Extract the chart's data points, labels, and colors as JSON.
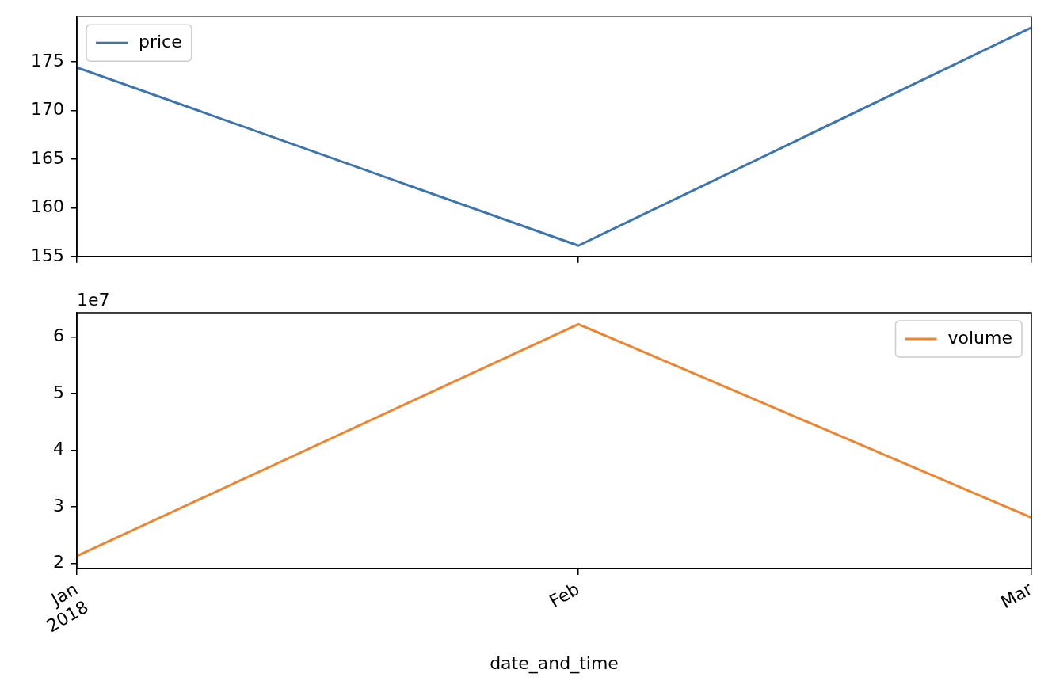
{
  "chart_data": [
    {
      "type": "line",
      "x": [
        "2018-01",
        "2018-02",
        "2018-03"
      ],
      "series": [
        {
          "name": "price",
          "color": "#3a75b0",
          "values": [
            174.4,
            156.1,
            178.5
          ]
        }
      ],
      "xlim": [
        "2018-01",
        "2018-03"
      ],
      "xticks": [
        {
          "value": "2018-01",
          "label": null
        },
        {
          "value": "2018-02",
          "label": null
        },
        {
          "value": "2018-03",
          "label": null
        }
      ],
      "ylim": [
        155.0,
        179.6
      ],
      "yticks": [
        155,
        160,
        165,
        170,
        175
      ],
      "tick_labels": "y",
      "legend": "top left",
      "grid": false,
      "marker": "none",
      "line_style": "solid"
    },
    {
      "type": "line",
      "x": [
        "2018-01",
        "2018-02",
        "2018-03"
      ],
      "series": [
        {
          "name": "volume",
          "color": "#f0842e",
          "values": [
            2.13,
            6.23,
            2.81
          ]
        }
      ],
      "xlim": [
        "2018-01",
        "2018-03"
      ],
      "xticks": [
        {
          "value": "2018-01",
          "label": "Jan\n2018"
        },
        {
          "value": "2018-02",
          "label": "Feb"
        },
        {
          "value": "2018-03",
          "label": "Mar"
        }
      ],
      "ylim": [
        1.91,
        6.43
      ],
      "yticks": [
        2,
        3,
        4,
        5,
        6
      ],
      "xlabel": "date_and_time",
      "annotations": [
        "1e7"
      ],
      "legend": "top right",
      "grid": false,
      "marker": "none",
      "line_style": "solid"
    }
  ]
}
